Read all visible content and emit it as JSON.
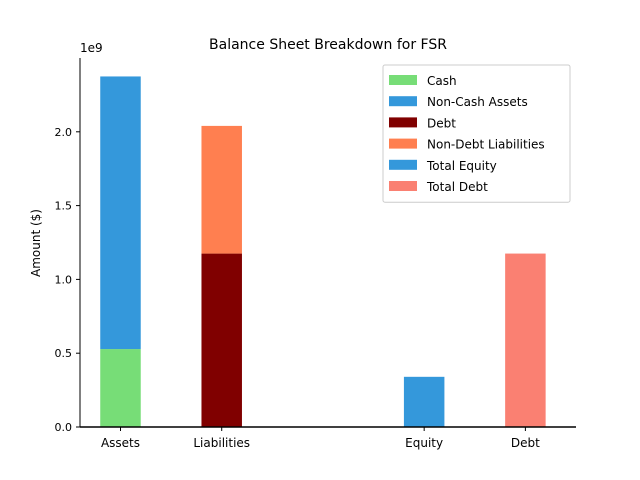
{
  "chart_data": {
    "type": "bar",
    "title": "Balance Sheet Breakdown for FSR",
    "xlabel": "",
    "ylabel": "Amount ($)",
    "y_offset_label": "1e9",
    "ylim": [
      0,
      2500000000.0
    ],
    "yticks": [
      0,
      500000000.0,
      1000000000.0,
      1500000000.0,
      2000000000.0
    ],
    "ytick_labels": [
      "0.0",
      "0.5",
      "1.0",
      "1.5",
      "2.0"
    ],
    "categories": [
      "Assets",
      "Liabilities",
      "Equity",
      "Debt"
    ],
    "category_x": [
      0,
      1,
      3,
      4
    ],
    "xlim": [
      -0.4,
      4.5
    ],
    "grid": false,
    "legend_position": "top-right",
    "series": [
      {
        "name": "Cash",
        "color": "#77dd77",
        "x": 0,
        "base": 0,
        "value": 528000000
      },
      {
        "name": "Non-Cash Assets",
        "color": "#3498db",
        "x": 0,
        "base": 528000000,
        "value": 1847000000
      },
      {
        "name": "Debt",
        "color": "#800000",
        "x": 1,
        "base": 0,
        "value": 1175000000
      },
      {
        "name": "Non-Debt Liabilities",
        "color": "#ff7f50",
        "x": 1,
        "base": 1175000000,
        "value": 865000000
      },
      {
        "name": "Total Equity",
        "color": "#3498db",
        "x": 3,
        "base": 0,
        "value": 340000000
      },
      {
        "name": "Total Debt",
        "color": "#fa8072",
        "x": 4,
        "base": 0,
        "value": 1175000000
      }
    ]
  }
}
